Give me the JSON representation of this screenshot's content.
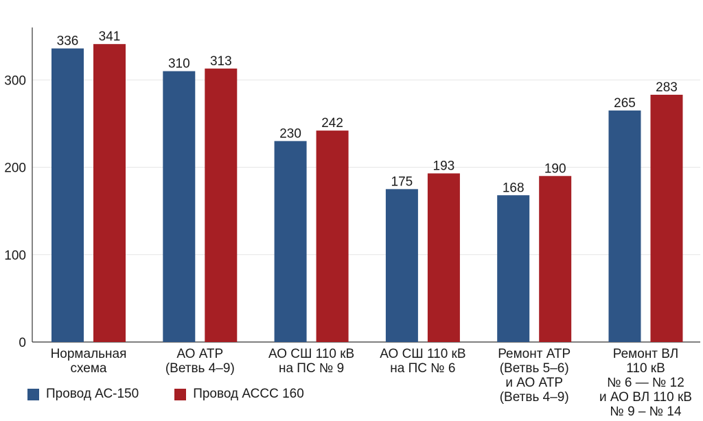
{
  "chart_data": {
    "type": "bar",
    "categories": [
      [
        "Нормальная",
        "схема"
      ],
      [
        "АО АТР",
        "(Ветвь 4–9)"
      ],
      [
        "АО СШ 110 кВ",
        "на ПС № 9"
      ],
      [
        "АО СШ 110 кВ",
        "на ПС № 6"
      ],
      [
        "Ремонт АТР",
        "(Ветвь 5–6)",
        "и АО АТР",
        "(Ветвь 4–9)"
      ],
      [
        "Ремонт ВЛ",
        "110 кВ",
        "№ 6 — № 12",
        "и АО ВЛ 110 кВ",
        "№ 9 – № 14"
      ]
    ],
    "series": [
      {
        "name": "Провод АС-150",
        "color": "#2e5586",
        "values": [
          336,
          310,
          230,
          175,
          168,
          265
        ]
      },
      {
        "name": "Провод АССС 160",
        "color": "#a61f24",
        "values": [
          341,
          313,
          242,
          193,
          190,
          283
        ]
      }
    ],
    "ylim": [
      0,
      360
    ],
    "yticks": [
      0,
      100,
      200,
      300
    ],
    "grid": true,
    "legend": "bottom-left",
    "xlabel": "",
    "ylabel": "",
    "title": ""
  }
}
